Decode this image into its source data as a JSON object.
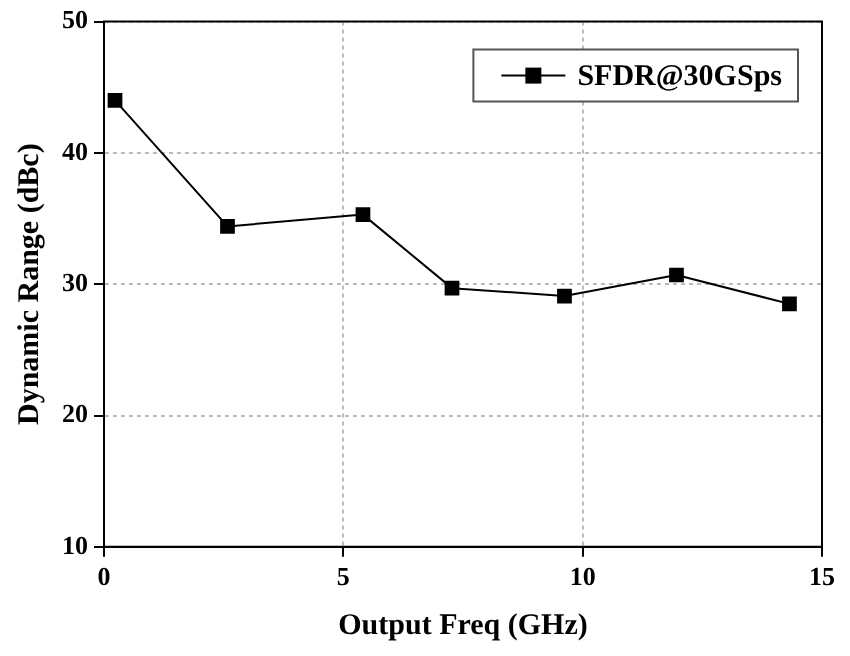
{
  "chart_data": {
    "type": "line",
    "xlabel": "Output Freq (GHz)",
    "ylabel": "Dynamic Range (dBc)",
    "x": [
      0.23,
      2.58,
      5.41,
      7.27,
      9.62,
      11.96,
      14.32
    ],
    "series": [
      {
        "name": "SFDR@30GSps",
        "color": "#000000",
        "values": [
          44.0,
          34.4,
          35.3,
          29.7,
          29.1,
          30.7,
          28.5
        ]
      }
    ],
    "xlim": [
      0,
      15
    ],
    "xticks": [
      0,
      5,
      10,
      15
    ],
    "ylim": [
      10,
      50
    ],
    "yticks": [
      10,
      20,
      30,
      40,
      50
    ],
    "grid": true,
    "legend": "top right",
    "marker": "square",
    "line_style": "solid"
  }
}
